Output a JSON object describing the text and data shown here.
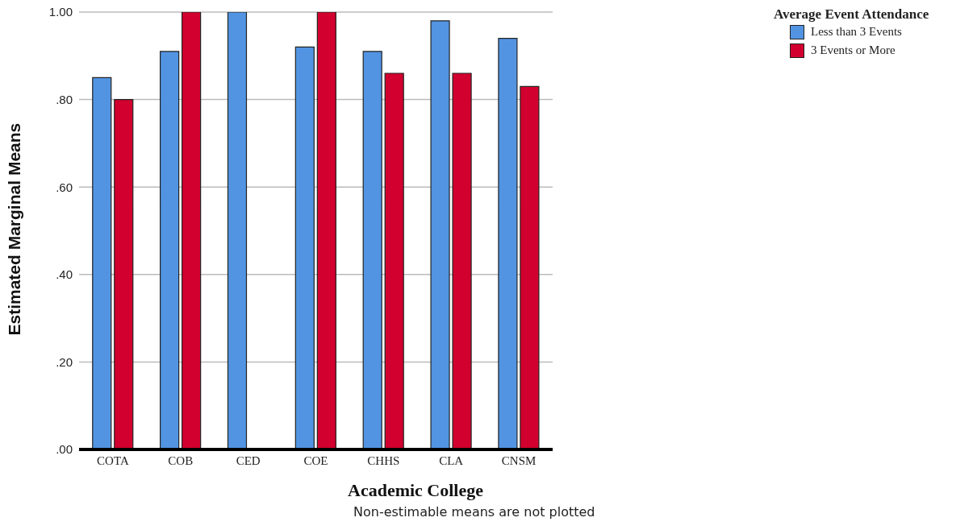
{
  "chart_data": {
    "type": "bar",
    "xlabel": "Academic College",
    "ylabel": "Estimated Marginal Means",
    "legend_title": "Average Event Attendance",
    "categories": [
      "COTA",
      "COB",
      "CED",
      "COE",
      "CHHS",
      "CLA",
      "CNSM"
    ],
    "series": [
      {
        "name": "Less than 3 Events",
        "color": "#5294e2",
        "values": [
          0.85,
          0.91,
          1.0,
          0.92,
          0.91,
          0.98,
          0.94
        ]
      },
      {
        "name": "3 Events or More",
        "color": "#d2002e",
        "values": [
          0.8,
          1.0,
          null,
          1.0,
          0.86,
          0.86,
          0.83
        ]
      }
    ],
    "ylim": [
      0,
      1.0
    ],
    "yticks": [
      {
        "value": 0,
        "label": ".00"
      },
      {
        "value": 0.2,
        "label": ".20"
      },
      {
        "value": 0.4,
        "label": ".40"
      },
      {
        "value": 0.6,
        "label": ".60"
      },
      {
        "value": 0.8,
        "label": ".80"
      },
      {
        "value": 1.0,
        "label": "1.00"
      }
    ],
    "grid": "y",
    "legend": "top right",
    "annotations": [
      "Non-estimable means are not plotted"
    ]
  }
}
